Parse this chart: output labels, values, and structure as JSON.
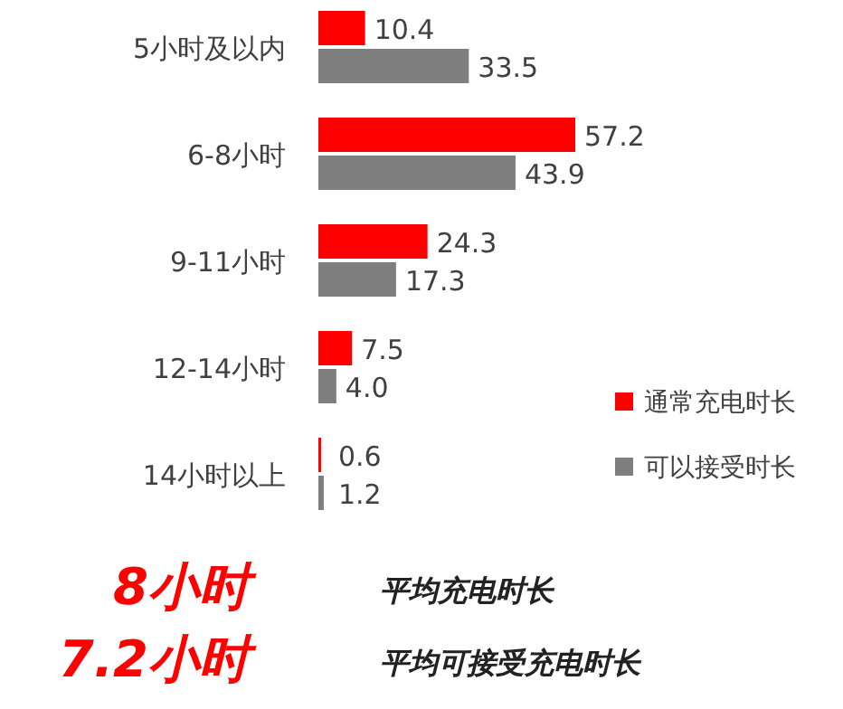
{
  "chart_data": {
    "type": "bar",
    "orientation": "horizontal",
    "categories": [
      "5小时及以内",
      "6-8小时",
      "9-11小时",
      "12-14小时",
      "14小时以上"
    ],
    "series": [
      {
        "name": "通常充电时长",
        "color": "#ff0000",
        "values": [
          10.4,
          57.2,
          24.3,
          7.5,
          0.6
        ],
        "value_labels": [
          "10.4",
          "57.2",
          "24.3",
          "7.5",
          "0.6"
        ]
      },
      {
        "name": "可以接受时长",
        "color": "#7f7f7f",
        "values": [
          33.5,
          43.9,
          17.3,
          4.0,
          1.2
        ],
        "value_labels": [
          "33.5",
          "43.9",
          "17.3",
          "4.0",
          "1.2"
        ]
      }
    ],
    "legend": "bottom right",
    "annotations": [
      "8小时",
      "平均充电时长",
      "7.2小时",
      "平均可接受充电时长"
    ]
  }
}
